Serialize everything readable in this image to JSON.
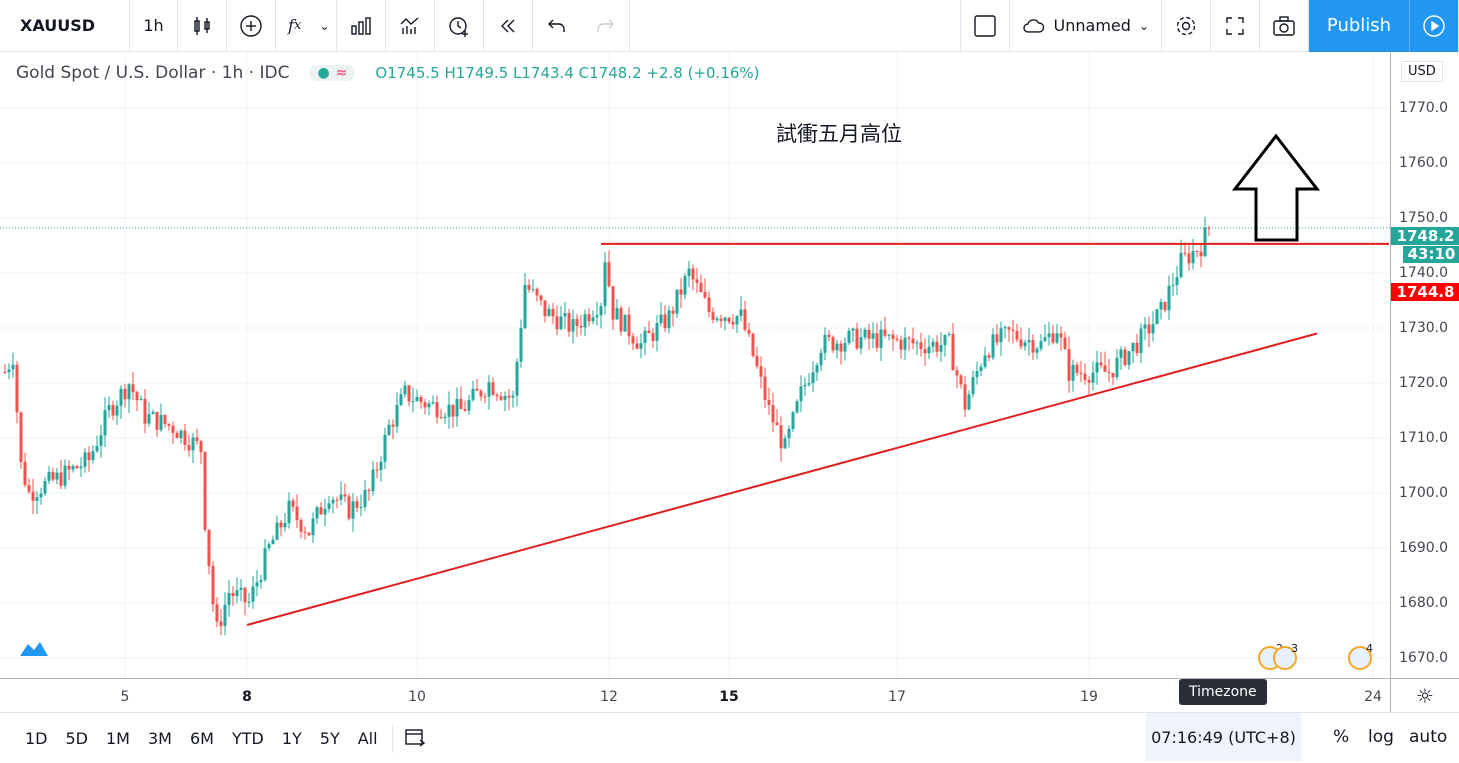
{
  "toolbar": {
    "symbol": "XAUUSD",
    "interval": "1h",
    "layout_name": "Unnamed",
    "publish": "Publish",
    "icons": [
      "candles-icon",
      "add-compare-icon",
      "indicators-icon",
      "chevron-down-icon",
      "templates-icon",
      "compare-icon",
      "alert-icon",
      "replay-icon",
      "undo-icon",
      "redo-icon"
    ]
  },
  "legend": {
    "title": "Gold Spot / U.S. Dollar · 1h · IDC",
    "open": "O1745.5",
    "high": "H1749.5",
    "low": "L1743.4",
    "close": "C1748.2",
    "change": "+2.8 (+0.16%)"
  },
  "annotation": "試衝五月高位",
  "price_axis": {
    "currency": "USD",
    "labels": [
      "1770.0",
      "1760.0",
      "1750.0",
      "1740.0",
      "1730.0",
      "1720.0",
      "1710.0",
      "1700.0",
      "1690.0",
      "1680.0",
      "1670.0"
    ],
    "last_price": "1748.2",
    "countdown": "43:10",
    "line_price": "1744.8"
  },
  "time_axis": {
    "labels": [
      {
        "t": "5",
        "i": 30,
        "bold": false
      },
      {
        "t": "8",
        "i": 60.5,
        "bold": true
      },
      {
        "t": "10",
        "i": 103,
        "bold": false
      },
      {
        "t": "12",
        "i": 151,
        "bold": false
      },
      {
        "t": "15",
        "i": 181,
        "bold": true
      },
      {
        "t": "17",
        "i": 223,
        "bold": false
      },
      {
        "t": "19",
        "i": 271,
        "bold": false
      },
      {
        "t": "24",
        "i": 342,
        "bold": false
      }
    ]
  },
  "events": [
    "2",
    "3",
    "4"
  ],
  "bottom": {
    "ranges": [
      "1D",
      "5D",
      "1M",
      "3M",
      "6M",
      "YTD",
      "1Y",
      "5Y",
      "All"
    ],
    "time": "07:16:49 (UTC+8)",
    "tooltip": "Timezone",
    "pct": "%",
    "log": "log",
    "auto": "auto"
  },
  "colors": {
    "up": "#26a69a",
    "down": "#ef5350",
    "drawing": "#e31e1e",
    "accent": "#2196f3"
  },
  "chart_data": {
    "type": "candlestick",
    "ylim": [
      1667,
      1777
    ],
    "path": [
      [
        0,
        1722
      ],
      [
        2,
        1725
      ],
      [
        4,
        1705
      ],
      [
        6,
        1700
      ],
      [
        14,
        1703
      ],
      [
        21,
        1706
      ],
      [
        26,
        1715
      ],
      [
        31,
        1720
      ],
      [
        35,
        1714
      ],
      [
        42,
        1712
      ],
      [
        49,
        1708
      ],
      [
        50,
        1695
      ],
      [
        52,
        1680
      ],
      [
        53,
        1675
      ],
      [
        56,
        1682
      ],
      [
        61,
        1680
      ],
      [
        66,
        1690
      ],
      [
        71,
        1697
      ],
      [
        76,
        1693
      ],
      [
        81,
        1700
      ],
      [
        86,
        1697
      ],
      [
        91,
        1700
      ],
      [
        96,
        1712
      ],
      [
        100,
        1718
      ],
      [
        106,
        1716
      ],
      [
        114,
        1715
      ],
      [
        121,
        1720
      ],
      [
        127,
        1717
      ],
      [
        130,
        1738
      ],
      [
        135,
        1733
      ],
      [
        142,
        1730
      ],
      [
        149,
        1735
      ],
      [
        150,
        1743
      ],
      [
        152,
        1733
      ],
      [
        159,
        1727
      ],
      [
        166,
        1732
      ],
      [
        171,
        1740
      ],
      [
        176,
        1733
      ],
      [
        184,
        1732
      ],
      [
        187,
        1725
      ],
      [
        191,
        1715
      ],
      [
        195,
        1708
      ],
      [
        199,
        1718
      ],
      [
        204,
        1727
      ],
      [
        211,
        1728
      ],
      [
        219,
        1728
      ],
      [
        229,
        1727
      ],
      [
        236,
        1727
      ],
      [
        240,
        1716
      ],
      [
        245,
        1726
      ],
      [
        251,
        1729
      ],
      [
        259,
        1727
      ],
      [
        263,
        1730
      ],
      [
        266,
        1722
      ],
      [
        271,
        1722
      ],
      [
        276,
        1722
      ],
      [
        284,
        1728
      ],
      [
        289,
        1733
      ],
      [
        294,
        1742
      ],
      [
        299,
        1745
      ],
      [
        301,
        1748.2
      ]
    ],
    "trendlines": [
      {
        "name": "support",
        "from": [
          60.5,
          1676
        ],
        "to": [
          328,
          1729
        ]
      },
      {
        "name": "resistance",
        "from": [
          149,
          1745.3
        ],
        "to": [
          346,
          1745.3
        ]
      }
    ]
  }
}
